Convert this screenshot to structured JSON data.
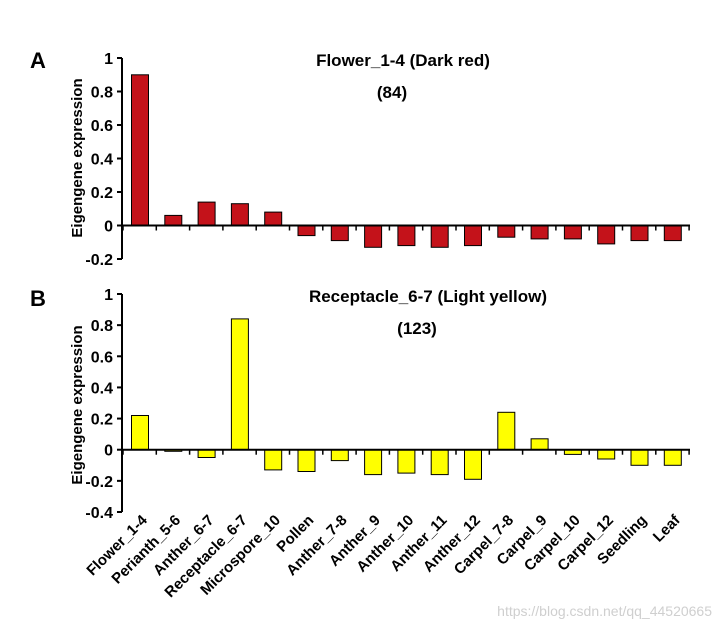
{
  "chart_data": [
    {
      "panel_label": "A",
      "type": "bar",
      "title": "Flower_1-4 (Dark red)",
      "subtitle": "(84)",
      "ylabel": "Eigengene expression",
      "ylim": [
        -0.2,
        1
      ],
      "yticks": [
        "1",
        "0.8",
        "0.6",
        "0.4",
        "0.2",
        "0",
        "-0.2"
      ],
      "color": "#c4121a",
      "categories": [
        "Flower_1-4",
        "Perianth_5-6",
        "Anther_6-7",
        "Receptacle_6-7",
        "Microspore_10",
        "Pollen",
        "Anther_7-8",
        "Anther_9",
        "Anther_10",
        "Anther_11",
        "Anther_12",
        "Carpel_7-8",
        "Carpel_9",
        "Carpel_10",
        "Carpel_12",
        "Seedling",
        "Leaf"
      ],
      "values": [
        0.9,
        0.06,
        0.14,
        0.13,
        0.08,
        -0.06,
        -0.09,
        -0.13,
        -0.12,
        -0.13,
        -0.12,
        -0.07,
        -0.08,
        -0.08,
        -0.11,
        -0.09,
        -0.09
      ]
    },
    {
      "panel_label": "B",
      "type": "bar",
      "title": "Receptacle_6-7 (Light yellow)",
      "subtitle": "(123)",
      "ylabel": "Eigengene expression",
      "ylim": [
        -0.4,
        1
      ],
      "yticks": [
        "1",
        "0.8",
        "0.6",
        "0.4",
        "0.2",
        "0",
        "-0.2",
        "-0.4"
      ],
      "color": "#ffff00",
      "categories": [
        "Flower_1-4",
        "Perianth_5-6",
        "Anther_6-7",
        "Receptacle_6-7",
        "Microspore_10",
        "Pollen",
        "Anther_7-8",
        "Anther_9",
        "Anther_10",
        "Anther_11",
        "Anther_12",
        "Carpel_7-8",
        "Carpel_9",
        "Carpel_10",
        "Carpel_12",
        "Seedling",
        "Leaf"
      ],
      "values": [
        0.22,
        -0.01,
        -0.05,
        0.84,
        -0.13,
        -0.14,
        -0.07,
        -0.16,
        -0.15,
        -0.16,
        -0.19,
        0.24,
        0.07,
        -0.03,
        -0.06,
        -0.1,
        -0.1
      ]
    }
  ],
  "watermark": "https://blog.csdn.net/qq_44520665"
}
